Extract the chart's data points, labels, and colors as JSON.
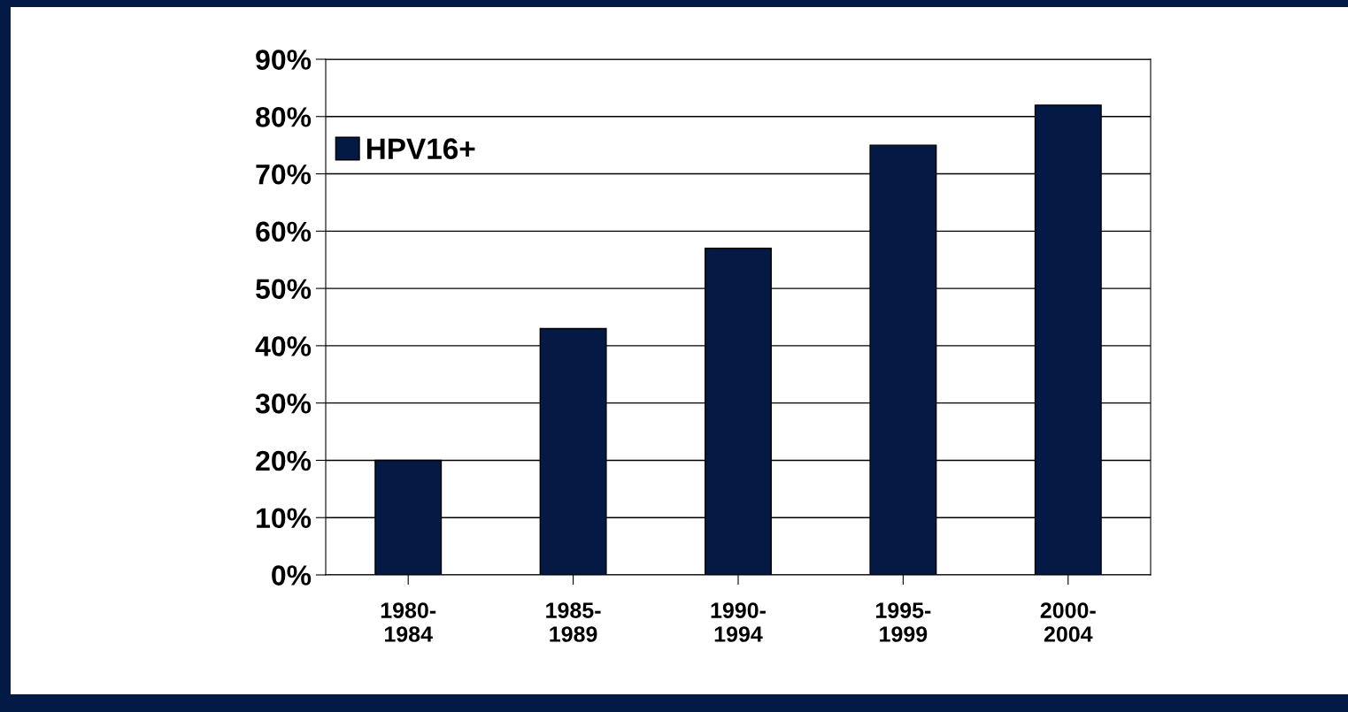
{
  "chart_data": {
    "type": "bar",
    "categories": [
      "1980-\n1984",
      "1985-\n1989",
      "1990-\n1994",
      "1995-\n1999",
      "2000-\n2004"
    ],
    "series": [
      {
        "name": "HPV16+",
        "color": "#041a45",
        "values": [
          20,
          43,
          57,
          75,
          82
        ]
      }
    ],
    "ylim": [
      0,
      90
    ],
    "yticks": [
      {
        "value": 0,
        "label": "0%"
      },
      {
        "value": 10,
        "label": "10%"
      },
      {
        "value": 20,
        "label": "20%"
      },
      {
        "value": 30,
        "label": "30%"
      },
      {
        "value": 40,
        "label": "40%"
      },
      {
        "value": 50,
        "label": "50%"
      },
      {
        "value": 60,
        "label": "60%"
      },
      {
        "value": 70,
        "label": "70%"
      },
      {
        "value": 80,
        "label": "80%"
      },
      {
        "value": 90,
        "label": "90%"
      }
    ],
    "grid": "y",
    "legend": "top left"
  }
}
